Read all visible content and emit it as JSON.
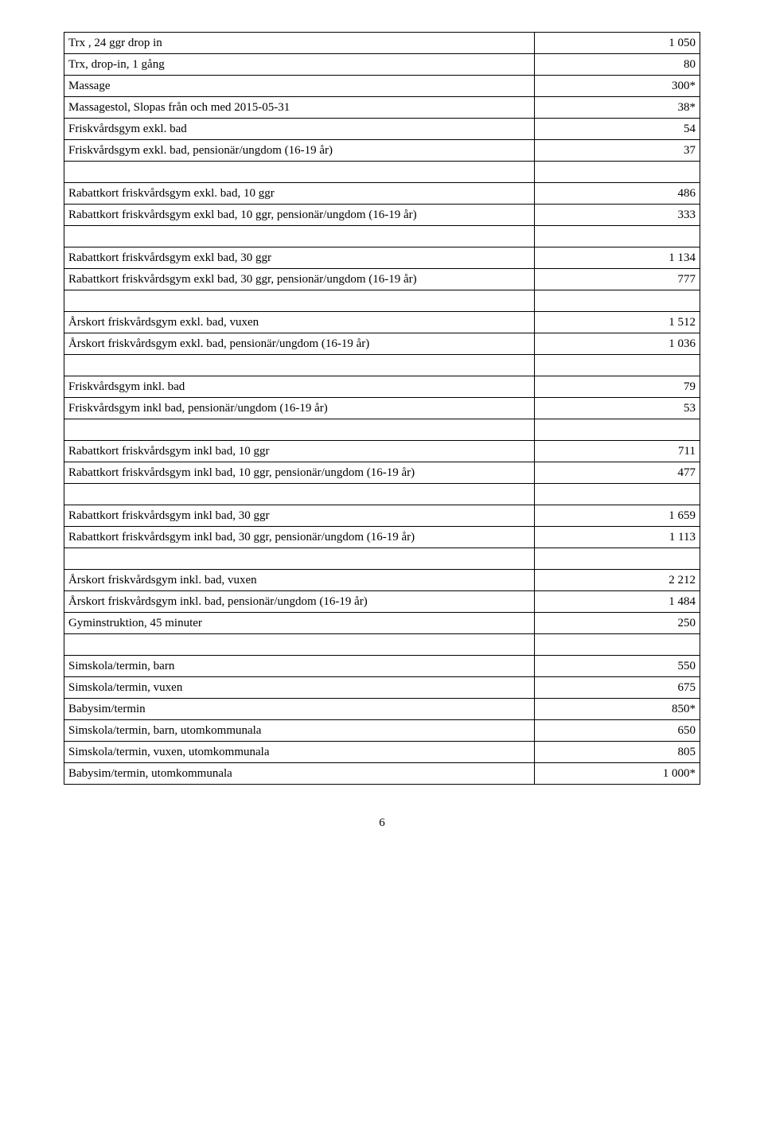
{
  "rows": [
    {
      "label": "Trx , 24 ggr drop in",
      "value": "1 050"
    },
    {
      "label": "Trx, drop-in, 1 gång",
      "value": "80"
    },
    {
      "label": "Massage",
      "value": "300*"
    },
    {
      "label": "Massagestol, Slopas från och med 2015-05-31",
      "value": "38*"
    },
    {
      "label": "Friskvårdsgym exkl. bad",
      "value": "54"
    },
    {
      "label": "Friskvårdsgym exkl. bad, pensionär/ungdom (16-19 år)",
      "value": "37"
    },
    {
      "gap": true
    },
    {
      "label": "Rabattkort friskvårdsgym exkl. bad, 10 ggr",
      "value": "486"
    },
    {
      "label": "Rabattkort friskvårdsgym exkl bad, 10 ggr, pensionär/ungdom (16-19 år)",
      "value": "333"
    },
    {
      "gap": true
    },
    {
      "label": "Rabattkort friskvårdsgym exkl bad, 30 ggr",
      "value": "1 134"
    },
    {
      "label": "Rabattkort friskvårdsgym exkl bad, 30 ggr, pensionär/ungdom (16-19 år)",
      "value": "777"
    },
    {
      "gap": true
    },
    {
      "label": "Årskort friskvårdsgym exkl. bad, vuxen",
      "value": "1 512"
    },
    {
      "label": "Årskort friskvårdsgym exkl. bad, pensionär/ungdom (16-19 år)",
      "value": "1 036"
    },
    {
      "gap": true
    },
    {
      "label": "Friskvårdsgym inkl. bad",
      "value": "79"
    },
    {
      "label": "Friskvårdsgym inkl bad, pensionär/ungdom (16-19 år)",
      "value": "53"
    },
    {
      "gap": true
    },
    {
      "label": "Rabattkort friskvårdsgym inkl bad, 10 ggr",
      "value": "711"
    },
    {
      "label": "Rabattkort friskvårdsgym inkl bad, 10 ggr, pensionär/ungdom (16-19 år)",
      "value": "477"
    },
    {
      "gap": true
    },
    {
      "label": "Rabattkort friskvårdsgym inkl bad, 30 ggr",
      "value": "1 659"
    },
    {
      "label": "Rabattkort friskvårdsgym inkl bad, 30 ggr, pensionär/ungdom (16-19 år)",
      "value": "1 113"
    },
    {
      "gap": true
    },
    {
      "label": "Årskort friskvårdsgym inkl. bad, vuxen",
      "value": "2 212"
    },
    {
      "label": "Årskort friskvårdsgym inkl. bad, pensionär/ungdom (16-19 år)",
      "value": "1 484"
    },
    {
      "label": "Gyminstruktion, 45 minuter",
      "value": "250"
    },
    {
      "gap": true
    },
    {
      "label": "Simskola/termin, barn",
      "value": "550"
    },
    {
      "label": "Simskola/termin, vuxen",
      "value": "675"
    },
    {
      "label": "Babysim/termin",
      "value": "850*"
    },
    {
      "label": "Simskola/termin, barn, utomkommunala",
      "value": "650"
    },
    {
      "label": "Simskola/termin, vuxen, utomkommunala",
      "value": "805"
    },
    {
      "label": "Babysim/termin, utomkommunala",
      "value": "1 000*"
    }
  ],
  "page_number": "6"
}
